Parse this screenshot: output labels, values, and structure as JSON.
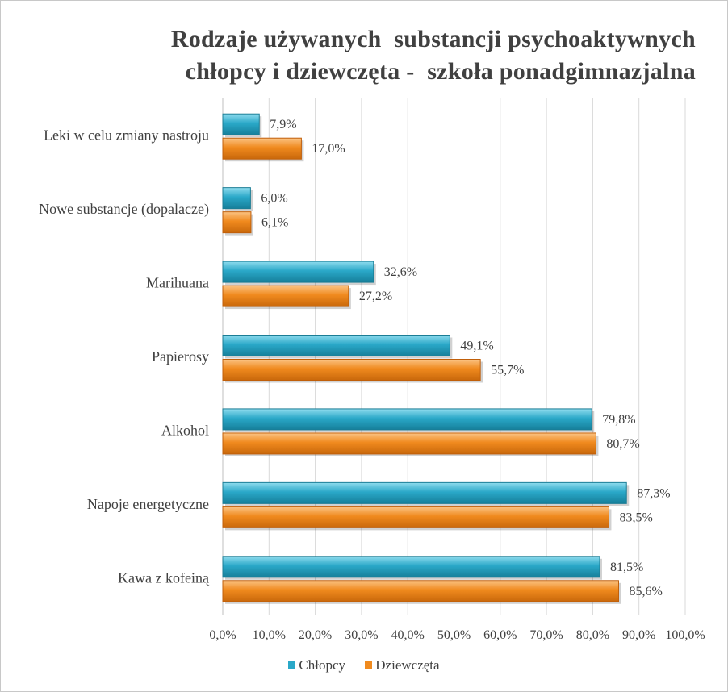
{
  "chart_data": {
    "type": "bar",
    "orientation": "horizontal",
    "title": "Rodzaje używanych  substancji psychoaktywnych",
    "subtitle": "chłopcy i dziewczęta -  szkoła ponadgimnazjalna",
    "categories": [
      "Leki w celu zmiany nastroju",
      "Nowe substancje (dopalacze)",
      "Marihuana",
      "Papierosy",
      "Alkohol",
      "Napoje energetyczne",
      "Kawa z kofeiną"
    ],
    "series": [
      {
        "name": "Chłopcy",
        "color": "#2aa8c8",
        "values": [
          7.9,
          6.0,
          32.6,
          49.1,
          79.8,
          87.3,
          81.5
        ],
        "labels": [
          "7,9%",
          "6,0%",
          "32,6%",
          "49,1%",
          "79,8%",
          "87,3%",
          "81,5%"
        ]
      },
      {
        "name": "Dziewczęta",
        "color": "#f08a1e",
        "values": [
          17.0,
          6.1,
          27.2,
          55.7,
          80.7,
          83.5,
          85.6
        ],
        "labels": [
          "17,0%",
          "6,1%",
          "27,2%",
          "55,7%",
          "80,7%",
          "83,5%",
          "85,6%"
        ]
      }
    ],
    "xlim": [
      0,
      100
    ],
    "xticks": [
      "0,0%",
      "10,0%",
      "20,0%",
      "30,0%",
      "40,0%",
      "50,0%",
      "60,0%",
      "70,0%",
      "80,0%",
      "90,0%",
      "100,0%"
    ],
    "grid": true,
    "legend_position": "bottom"
  }
}
